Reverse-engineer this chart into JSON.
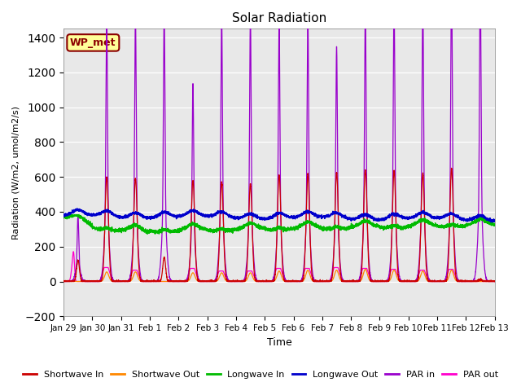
{
  "title": "Solar Radiation",
  "ylabel": "Radiation (W/m2, umol/m2/s)",
  "xlabel": "Time",
  "ylim": [
    -200,
    1450
  ],
  "yticks": [
    -200,
    0,
    200,
    400,
    600,
    800,
    1000,
    1200,
    1400
  ],
  "xlim": [
    0,
    15
  ],
  "xtick_labels": [
    "Jan 29",
    "Jan 30",
    "Jan 31",
    "Feb 1",
    "Feb 2",
    "Feb 3",
    "Feb 4",
    "Feb 5",
    "Feb 6",
    "Feb 7",
    "Feb 8",
    "Feb 9",
    "Feb 10",
    "Feb 11",
    "Feb 12",
    "Feb 13"
  ],
  "xtick_positions": [
    0,
    1,
    2,
    3,
    4,
    5,
    6,
    7,
    8,
    9,
    10,
    11,
    12,
    13,
    14,
    15
  ],
  "colors": {
    "shortwave_in": "#cc0000",
    "shortwave_out": "#ff8800",
    "longwave_in": "#00bb00",
    "longwave_out": "#0000cc",
    "par_in": "#9900cc",
    "par_out": "#ff00cc"
  },
  "legend_label": "WP_met",
  "background_color": "#e8e8e8",
  "n_days": 15
}
